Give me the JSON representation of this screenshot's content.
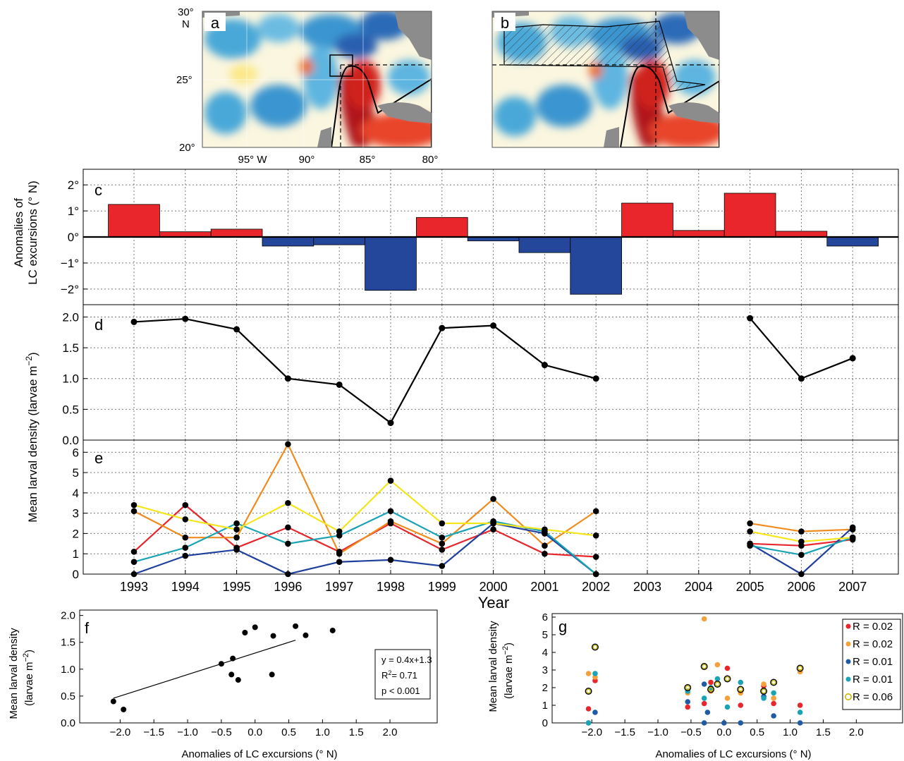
{
  "maps": {
    "a": {
      "panel_label": "a",
      "lat_ticks": [
        "30°",
        "N",
        "25°",
        "20°"
      ],
      "lon_ticks": [
        "95° W",
        "90°",
        "85°",
        "80°"
      ]
    },
    "b": {
      "panel_label": "b"
    }
  },
  "chart_data": [
    {
      "id": "c",
      "type": "bar",
      "panel_label": "c",
      "ylabel_lines": [
        "Anomalies of",
        "LC excursions (° N)"
      ],
      "x": [
        1993,
        1994,
        1995,
        1996,
        1997,
        1998,
        1999,
        2000,
        2001,
        2002,
        2003,
        2004,
        2005,
        2006,
        2007
      ],
      "values": [
        1.25,
        0.2,
        0.3,
        -0.35,
        -0.3,
        -2.05,
        0.75,
        -0.15,
        -0.6,
        -2.2,
        1.3,
        0.25,
        1.68,
        0.22,
        -0.35
      ],
      "ylim": [
        -2.6,
        2.6
      ],
      "y_ticks": [
        2,
        1,
        0,
        -1,
        -2
      ],
      "y_tick_labels": [
        "2°",
        "1°",
        "0°",
        "−1°",
        "−2°"
      ],
      "colors": {
        "positive": "#e8262b",
        "negative": "#25479b"
      },
      "grid": true
    },
    {
      "id": "d",
      "type": "line",
      "panel_label": "d",
      "x": [
        1993,
        1994,
        1995,
        1996,
        1997,
        1998,
        1999,
        2000,
        2001,
        2002,
        2005,
        2006,
        2007
      ],
      "values": [
        1.92,
        1.97,
        1.8,
        1.0,
        0.9,
        0.28,
        1.82,
        1.86,
        1.22,
        1.0,
        1.98,
        1.0,
        1.33
      ],
      "segments": [
        [
          0,
          9
        ],
        [
          10,
          12
        ]
      ],
      "ylim": [
        0,
        2.2
      ],
      "y_ticks": [
        0.0,
        0.5,
        1.0,
        1.5,
        2.0
      ],
      "y_tick_labels": [
        "0.0",
        "0.5",
        "1.0",
        "1.5",
        "2.0"
      ],
      "color": "#000000",
      "grid": true
    },
    {
      "id": "e",
      "type": "line",
      "panel_label": "e",
      "shared_ylabel_lines": [
        "Mean larval density (larvae m",
        "−2",
        ")"
      ],
      "xlabel": "Year",
      "x": [
        1993,
        1994,
        1995,
        1996,
        1997,
        1998,
        1999,
        2000,
        2001,
        2002,
        2005,
        2006,
        2007
      ],
      "x_tick_labels": [
        "1993",
        "1994",
        "1995",
        "1996",
        "1997",
        "1998",
        "1999",
        "2000",
        "2001",
        "2002",
        "2003",
        "2004",
        "2005",
        "2006",
        "2007"
      ],
      "segments": [
        [
          0,
          9
        ],
        [
          10,
          12
        ]
      ],
      "series": [
        {
          "color": "#e8262b",
          "values": [
            1.1,
            3.4,
            1.3,
            2.3,
            1.1,
            2.5,
            1.2,
            2.2,
            1.0,
            0.85,
            1.5,
            1.4,
            1.7
          ]
        },
        {
          "color": "#f08c1e",
          "values": [
            3.1,
            1.8,
            1.8,
            6.4,
            1.0,
            2.6,
            1.5,
            3.7,
            1.4,
            3.1,
            2.5,
            2.1,
            2.2
          ]
        },
        {
          "color": "#1f3f9c",
          "values": [
            0.0,
            0.9,
            1.2,
            0.0,
            0.6,
            0.7,
            0.4,
            2.5,
            2.0,
            0.0,
            1.5,
            0.0,
            2.3
          ]
        },
        {
          "color": "#19a3b5",
          "values": [
            0.6,
            1.3,
            2.5,
            1.5,
            1.9,
            3.1,
            1.8,
            2.6,
            2.1,
            0.0,
            1.4,
            0.95,
            1.8
          ]
        },
        {
          "color": "#f5e51b",
          "values": [
            3.4,
            2.7,
            2.2,
            3.5,
            2.1,
            4.6,
            2.5,
            2.5,
            2.2,
            1.9,
            2.1,
            1.6,
            1.8
          ]
        }
      ],
      "ylim": [
        0,
        6.6
      ],
      "y_ticks": [
        0,
        1,
        2,
        3,
        4,
        5,
        6
      ],
      "grid": true
    },
    {
      "id": "f",
      "type": "scatter",
      "panel_label": "f",
      "ylabel_lines": [
        "Mean larval density",
        "(larvae m",
        "−2",
        ")"
      ],
      "xlabel": "Anomalies of LC excursions (° N)",
      "points": [
        [
          -2.1,
          0.4
        ],
        [
          -1.95,
          0.25
        ],
        [
          -0.5,
          1.1
        ],
        [
          -0.35,
          0.9
        ],
        [
          -0.33,
          1.2
        ],
        [
          -0.25,
          0.8
        ],
        [
          -0.15,
          1.68
        ],
        [
          0.0,
          1.78
        ],
        [
          0.25,
          0.9
        ],
        [
          0.27,
          1.62
        ],
        [
          0.75,
          1.63
        ],
        [
          1.15,
          1.72
        ],
        [
          0.6,
          1.8
        ]
      ],
      "fit": {
        "slope": 0.4,
        "intercept": 1.3,
        "x_range": [
          -2.1,
          0.6
        ]
      },
      "stats": [
        "y = 0.4x+1.3",
        "R",
        "2",
        "= 0.71",
        "p < 0.001"
      ],
      "xlim": [
        -2.6,
        2.7
      ],
      "ylim": [
        0,
        2.1
      ],
      "x_ticks": [
        -2.0,
        -1.5,
        -1.0,
        -0.5,
        0.0,
        0.5,
        1.0,
        1.5,
        2.0
      ],
      "x_tick_labels": [
        "−2.0",
        "−1.5",
        "−1.0",
        "−0.5",
        "0.0",
        "0.5",
        "1.0",
        "1.5",
        "2.0"
      ],
      "y_ticks": [
        0.0,
        0.5,
        1.0,
        1.5,
        2.0
      ],
      "y_tick_labels": [
        "0.0",
        "0.5",
        "1.0",
        "1.5",
        "2.0"
      ]
    },
    {
      "id": "g",
      "type": "scatter",
      "panel_label": "g",
      "ylabel_lines": [
        "Mean larval density",
        "(larvae m",
        "−2",
        ")"
      ],
      "xlabel": "Anomalies of LC excursions (° N)",
      "xlim": [
        -2.6,
        2.7
      ],
      "ylim": [
        0,
        6.2
      ],
      "x_ticks": [
        -2.0,
        -1.5,
        -1.0,
        -0.5,
        0.0,
        0.5,
        1.0,
        1.5,
        2.0
      ],
      "x_tick_labels": [
        "−2.0",
        "−1.5",
        "−1.0",
        "−0.5",
        "0.0",
        "0.5",
        "1.0",
        "1.5",
        "2.0"
      ],
      "y_ticks": [
        0,
        1,
        2,
        3,
        4,
        5,
        6
      ],
      "legend_position": "right",
      "series": [
        {
          "name": "R = 0.02",
          "color": "#e8262b",
          "marker": "filled",
          "points": [
            [
              -2.05,
              0.8
            ],
            [
              -1.95,
              2.4
            ],
            [
              -0.55,
              0.9
            ],
            [
              -0.3,
              1.1
            ],
            [
              -0.2,
              2.3
            ],
            [
              0.05,
              3.1
            ],
            [
              0.25,
              1.0
            ],
            [
              0.75,
              1.1
            ],
            [
              1.15,
              1.0
            ],
            [
              0.6,
              2.1
            ]
          ]
        },
        {
          "name": "R = 0.02",
          "color": "#f5a13a",
          "marker": "filled",
          "points": [
            [
              -2.05,
              2.8
            ],
            [
              -1.95,
              2.6
            ],
            [
              -0.55,
              1.7
            ],
            [
              -0.3,
              5.9
            ],
            [
              -0.2,
              1.8
            ],
            [
              -0.1,
              3.3
            ],
            [
              0.05,
              1.4
            ],
            [
              0.25,
              1.7
            ],
            [
              0.75,
              1.4
            ],
            [
              1.15,
              2.9
            ],
            [
              0.6,
              2.2
            ]
          ]
        },
        {
          "name": "R = 0.01",
          "color": "#1f5aa5",
          "marker": "filled",
          "points": [
            [
              -2.05,
              0.0
            ],
            [
              -1.95,
              0.6
            ],
            [
              -0.55,
              1.2
            ],
            [
              -0.3,
              0.0
            ],
            [
              -0.25,
              0.6
            ],
            [
              0.0,
              0.0
            ],
            [
              0.25,
              0.0
            ],
            [
              0.75,
              0.4
            ],
            [
              1.15,
              0.0
            ],
            [
              0.6,
              1.5
            ],
            [
              -0.3,
              2.2
            ]
          ]
        },
        {
          "name": "R = 0.01",
          "color": "#19a3b5",
          "marker": "filled",
          "points": [
            [
              -2.05,
              0.0
            ],
            [
              -1.95,
              2.8
            ],
            [
              -0.55,
              1.8
            ],
            [
              -0.3,
              1.4
            ],
            [
              -0.2,
              2.0
            ],
            [
              -0.1,
              2.5
            ],
            [
              0.05,
              0.9
            ],
            [
              0.25,
              2.3
            ],
            [
              0.75,
              1.7
            ],
            [
              1.15,
              0.6
            ],
            [
              0.6,
              1.4
            ]
          ]
        },
        {
          "name": "R = 0.06",
          "color": "#c9b800",
          "marker": "open",
          "points": [
            [
              -2.05,
              1.8
            ],
            [
              -1.95,
              4.3
            ],
            [
              -0.55,
              2.0
            ],
            [
              -0.3,
              3.2
            ],
            [
              -0.2,
              1.9
            ],
            [
              -0.1,
              2.2
            ],
            [
              0.05,
              2.5
            ],
            [
              0.25,
              1.9
            ],
            [
              0.75,
              2.3
            ],
            [
              1.15,
              3.1
            ],
            [
              0.6,
              1.8
            ]
          ]
        }
      ]
    }
  ]
}
